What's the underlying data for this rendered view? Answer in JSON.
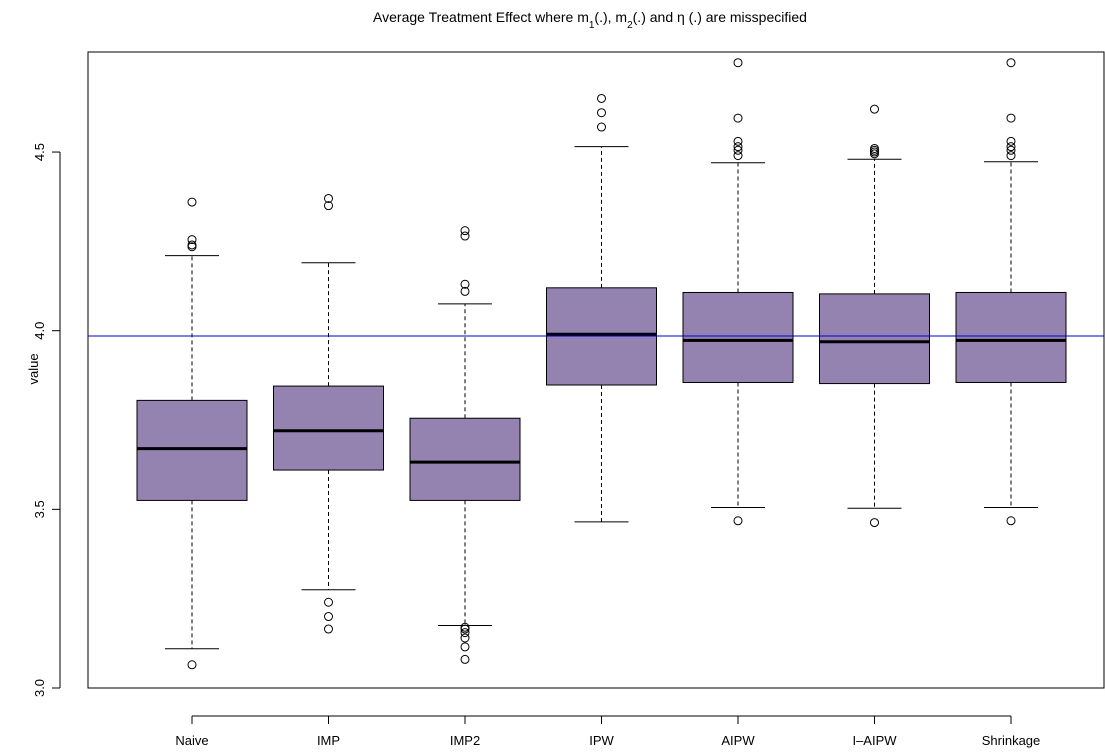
{
  "chart_data": {
    "type": "boxplot",
    "title": {
      "prefix": "Average Treatment Effect where m",
      "sub1": "1",
      "mid1": "(.), m",
      "sub2": "2",
      "suffix": "(.) and η (.) are misspecified"
    },
    "xlabel": "",
    "ylabel": "value",
    "ylim": [
      3.0,
      4.78
    ],
    "yticks": [
      "3.0",
      "3.5",
      "4.0",
      "4.5"
    ],
    "grid": false,
    "reference_line": {
      "value": 3.985,
      "color": "#0000cc"
    },
    "box_fill": "#9483b0",
    "categories": [
      "Naive",
      "IMP",
      "IMP2",
      "IPW",
      "AIPW",
      "I–AIPW",
      "Shrinkage"
    ],
    "boxes": [
      {
        "name": "Naive",
        "whisker_low": 3.11,
        "q1": 3.525,
        "median": 3.67,
        "q3": 3.805,
        "whisker_high": 4.21,
        "outliers": [
          3.065,
          4.235,
          4.24,
          4.255,
          4.36
        ]
      },
      {
        "name": "IMP",
        "whisker_low": 3.275,
        "q1": 3.61,
        "median": 3.72,
        "q3": 3.845,
        "whisker_high": 4.19,
        "outliers": [
          3.165,
          3.2,
          3.24,
          4.35,
          4.37
        ]
      },
      {
        "name": "IMP2",
        "whisker_low": 3.175,
        "q1": 3.525,
        "median": 3.632,
        "q3": 3.755,
        "whisker_high": 4.075,
        "outliers": [
          3.08,
          3.115,
          3.14,
          3.155,
          3.165,
          3.17,
          4.11,
          4.13,
          4.265,
          4.28
        ]
      },
      {
        "name": "IPW",
        "whisker_low": 3.465,
        "q1": 3.848,
        "median": 3.99,
        "q3": 4.12,
        "whisker_high": 4.515,
        "outliers": [
          4.57,
          4.61,
          4.65
        ]
      },
      {
        "name": "AIPW",
        "whisker_low": 3.505,
        "q1": 3.855,
        "median": 3.973,
        "q3": 4.107,
        "whisker_high": 4.47,
        "outliers": [
          3.468,
          4.49,
          4.505,
          4.515,
          4.53,
          4.595,
          4.75
        ]
      },
      {
        "name": "I–AIPW",
        "whisker_low": 3.503,
        "q1": 3.852,
        "median": 3.969,
        "q3": 4.103,
        "whisker_high": 4.48,
        "outliers": [
          3.463,
          4.495,
          4.5,
          4.505,
          4.51,
          4.62
        ]
      },
      {
        "name": "Shrinkage",
        "whisker_low": 3.505,
        "q1": 3.855,
        "median": 3.973,
        "q3": 4.107,
        "whisker_high": 4.473,
        "outliers": [
          3.468,
          4.49,
          4.505,
          4.515,
          4.53,
          4.595,
          4.75
        ]
      }
    ]
  }
}
